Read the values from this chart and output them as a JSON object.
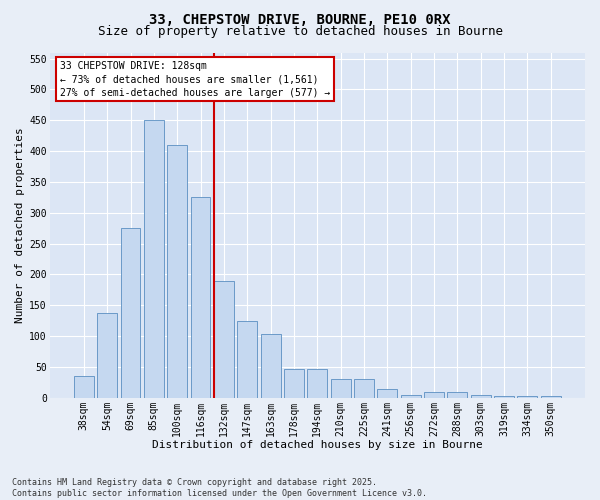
{
  "title1": "33, CHEPSTOW DRIVE, BOURNE, PE10 0RX",
  "title2": "Size of property relative to detached houses in Bourne",
  "xlabel": "Distribution of detached houses by size in Bourne",
  "ylabel": "Number of detached properties",
  "categories": [
    "38sqm",
    "54sqm",
    "69sqm",
    "85sqm",
    "100sqm",
    "116sqm",
    "132sqm",
    "147sqm",
    "163sqm",
    "178sqm",
    "194sqm",
    "210sqm",
    "225sqm",
    "241sqm",
    "256sqm",
    "272sqm",
    "288sqm",
    "303sqm",
    "319sqm",
    "334sqm",
    "350sqm"
  ],
  "values": [
    35,
    137,
    275,
    450,
    410,
    325,
    190,
    125,
    103,
    47,
    46,
    30,
    30,
    15,
    5,
    9,
    9,
    4,
    3,
    3,
    3
  ],
  "bar_color": "#c5d8f0",
  "bar_edge_color": "#5a8fc2",
  "vline_x": 6,
  "vline_color": "#cc0000",
  "annotation_line1": "33 CHEPSTOW DRIVE: 128sqm",
  "annotation_line2": "← 73% of detached houses are smaller (1,561)",
  "annotation_line3": "27% of semi-detached houses are larger (577) →",
  "box_edge_color": "#cc0000",
  "ylim": [
    0,
    560
  ],
  "yticks": [
    0,
    50,
    100,
    150,
    200,
    250,
    300,
    350,
    400,
    450,
    500,
    550
  ],
  "bg_color": "#e8eef7",
  "plot_bg_color": "#dce6f5",
  "grid_color": "#ffffff",
  "footer_text": "Contains HM Land Registry data © Crown copyright and database right 2025.\nContains public sector information licensed under the Open Government Licence v3.0.",
  "title1_fontsize": 10,
  "title2_fontsize": 9,
  "xlabel_fontsize": 8,
  "ylabel_fontsize": 8,
  "tick_fontsize": 7,
  "annot_fontsize": 7,
  "footer_fontsize": 6
}
